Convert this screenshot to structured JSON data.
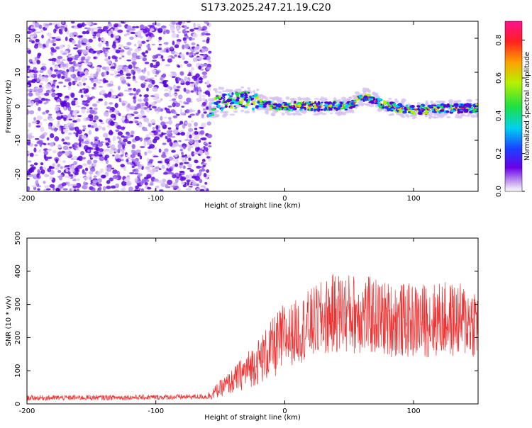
{
  "title": "S173.2025.247.21.19.C20",
  "chart_data": [
    {
      "type": "heatmap",
      "title": "S173.2025.247.21.19.C20",
      "xlabel": "Height of straight line (km)",
      "ylabel": "Frequency (Hz)",
      "xlim": [
        -200,
        150
      ],
      "ylim": [
        -25,
        25
      ],
      "xticks": [
        -200,
        -100,
        0,
        100
      ],
      "yticks": [
        -20,
        -10,
        0,
        10,
        20
      ],
      "colorbar": {
        "label": "Normalized spectral amplitude",
        "range": [
          0,
          0.9
        ],
        "ticks": [
          0.0,
          0.2,
          0.4,
          0.6,
          0.8
        ],
        "colormap": "rainbow"
      },
      "features": {
        "noise_region_x": [
          -200,
          -58
        ],
        "signal_line_x": [
          -58,
          150
        ],
        "signal_freq_hz": [
          {
            "x": -55,
            "f": 1
          },
          {
            "x": -30,
            "f": 2
          },
          {
            "x": -10,
            "f": 0
          },
          {
            "x": 20,
            "f": 0
          },
          {
            "x": 50,
            "f": 0
          },
          {
            "x": 62,
            "f": 3
          },
          {
            "x": 80,
            "f": 0
          },
          {
            "x": 100,
            "f": -1
          },
          {
            "x": 150,
            "f": -0.5
          }
        ]
      }
    },
    {
      "type": "line",
      "xlabel": "Height of straight line (km)",
      "ylabel": "SNR (10 * v/v)",
      "xlim": [
        -200,
        150
      ],
      "ylim": [
        0,
        500
      ],
      "xticks": [
        -200,
        -100,
        0,
        100
      ],
      "yticks": [
        0,
        100,
        200,
        300,
        400,
        500
      ],
      "color": "#ee3333",
      "trend": {
        "x": [
          -200,
          -100,
          -60,
          -40,
          -20,
          0,
          20,
          40,
          60,
          80,
          100,
          120,
          150
        ],
        "y": [
          18,
          20,
          22,
          70,
          130,
          200,
          240,
          275,
          270,
          255,
          250,
          255,
          250
        ]
      }
    }
  ]
}
